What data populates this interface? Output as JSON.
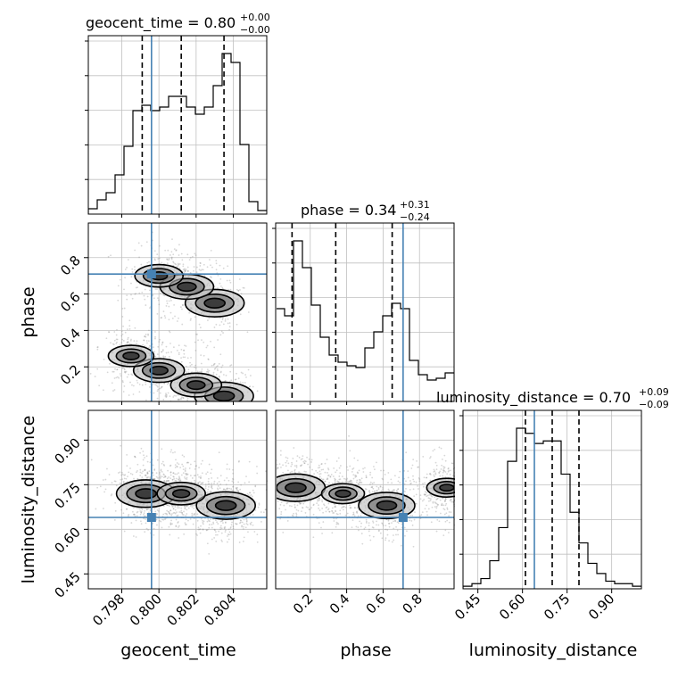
{
  "colors": {
    "truth": "#4682b4",
    "hist": "#000000",
    "grid": "#c0c0c0",
    "scatter": "#8c8c8c"
  },
  "titles": {
    "geocent_time": {
      "name": "geocent_time",
      "median": "0.80",
      "plus": "+0.00",
      "minus": "−0.00"
    },
    "phase": {
      "name": "phase",
      "median": "0.34",
      "plus": "+0.31",
      "minus": "−0.24"
    },
    "luminosity_distance": {
      "name": "luminosity_distance",
      "median": "0.70",
      "plus": "+0.09",
      "minus": "−0.09"
    }
  },
  "axis_labels": {
    "x_geocent_time": "geocent_time",
    "x_phase": "phase",
    "x_luminosity_distance": "luminosity_distance",
    "y_phase": "phase",
    "y_luminosity_distance": "luminosity_distance"
  },
  "chart_data": {
    "type": "corner",
    "parameters": [
      "geocent_time",
      "phase",
      "luminosity_distance"
    ],
    "ranges": {
      "geocent_time": [
        0.7962,
        0.8058
      ],
      "phase": [
        0.01,
        0.99
      ],
      "luminosity_distance": [
        0.4,
        1.0
      ]
    },
    "ticks": {
      "geocent_time": [
        "0.798",
        "0.800",
        "0.802",
        "0.804"
      ],
      "phase": [
        "0.2",
        "0.4",
        "0.6",
        "0.8"
      ],
      "luminosity_distance": [
        "0.45",
        "0.60",
        "0.75",
        "0.90"
      ]
    },
    "truths": {
      "geocent_time": 0.7996,
      "phase": 0.71,
      "luminosity_distance": 0.64
    },
    "quantiles": {
      "geocent_time": [
        0.7991,
        0.8012,
        0.8035
      ],
      "phase": [
        0.1,
        0.34,
        0.65
      ],
      "luminosity_distance": [
        0.61,
        0.7,
        0.79
      ]
    },
    "histograms": {
      "geocent_time": {
        "edges_range": [
          0.7962,
          0.8058
        ],
        "counts": [
          3,
          8,
          12,
          22,
          38,
          58,
          61,
          58,
          60,
          66,
          66,
          60,
          56,
          60,
          72,
          90,
          85,
          39,
          7,
          2
        ]
      },
      "phase": {
        "edges_range": [
          0.01,
          0.99
        ],
        "counts": [
          52,
          48,
          90,
          75,
          54,
          36,
          26,
          22,
          20,
          19,
          30,
          39,
          48,
          55,
          52,
          23,
          15,
          12,
          13,
          16
        ]
      },
      "luminosity_distance": {
        "edges_range": [
          0.4,
          1.0
        ],
        "counts": [
          1,
          2,
          4,
          11,
          24,
          50,
          63,
          61,
          57,
          58,
          58,
          45,
          30,
          18,
          10,
          6,
          3,
          2,
          2,
          1
        ]
      }
    },
    "scatter_density": {
      "phase_vs_geocent_time": {
        "clusters": [
          {
            "x": 0.803,
            "y": 0.55,
            "weight": 1.0
          },
          {
            "x": 0.8015,
            "y": 0.64,
            "weight": 0.8
          },
          {
            "x": 0.8,
            "y": 0.7,
            "weight": 0.6
          },
          {
            "x": 0.8035,
            "y": 0.04,
            "weight": 1.0
          },
          {
            "x": 0.802,
            "y": 0.1,
            "weight": 0.7
          },
          {
            "x": 0.8,
            "y": 0.18,
            "weight": 0.7
          },
          {
            "x": 0.7985,
            "y": 0.26,
            "weight": 0.5
          }
        ]
      },
      "luminosity_distance_vs_geocent_time": {
        "clusters": [
          {
            "x": 0.7993,
            "y": 0.72,
            "weight": 1.0
          },
          {
            "x": 0.8036,
            "y": 0.68,
            "weight": 1.0
          },
          {
            "x": 0.8012,
            "y": 0.72,
            "weight": 0.6
          }
        ]
      },
      "luminosity_distance_vs_phase": {
        "clusters": [
          {
            "x": 0.12,
            "y": 0.74,
            "weight": 1.0
          },
          {
            "x": 0.62,
            "y": 0.68,
            "weight": 0.9
          },
          {
            "x": 0.38,
            "y": 0.72,
            "weight": 0.4
          },
          {
            "x": 0.95,
            "y": 0.74,
            "weight": 0.3
          }
        ]
      }
    },
    "grid": true
  }
}
